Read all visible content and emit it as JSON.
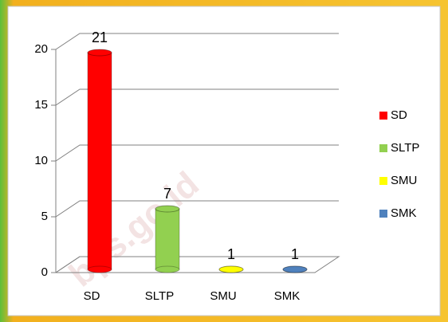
{
  "chart_data": {
    "type": "bar",
    "categories": [
      "SD",
      "SLTP",
      "SMU",
      "SMK"
    ],
    "series": [
      {
        "name": "SD",
        "color": "#ff0000"
      },
      {
        "name": "SLTP",
        "color": "#92d050"
      },
      {
        "name": "SMU",
        "color": "#ffff00"
      },
      {
        "name": "SMK",
        "color": "#4f81bd"
      }
    ],
    "values": [
      21,
      7,
      1,
      1
    ],
    "ylim": [
      0,
      20
    ],
    "yticks": [
      0,
      5,
      10,
      15,
      20
    ],
    "grid": true,
    "legend": "right",
    "watermark": "bps.go.id"
  }
}
